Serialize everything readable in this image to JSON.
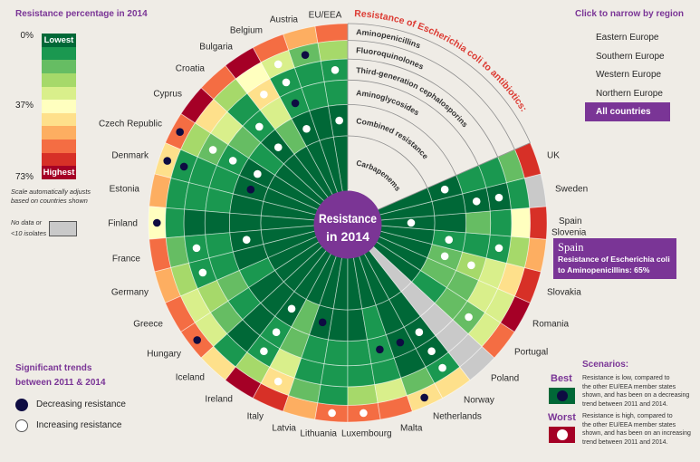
{
  "page": {
    "background": "#efece6",
    "accent": "#7a3596"
  },
  "legend": {
    "title": "Resistance percentage in 2014",
    "tick_min": "0%",
    "tick_mid": "37%",
    "tick_max": "73%",
    "lowest": "Lowest",
    "highest": "Highest",
    "colors": [
      "#006837",
      "#1a9850",
      "#66bd63",
      "#a6d96a",
      "#d9ef8b",
      "#ffffbf",
      "#fee08b",
      "#fdae61",
      "#f46d43",
      "#d73027",
      "#a50026"
    ],
    "note": [
      "Scale automatically adjusts",
      "based on countries shown"
    ],
    "no_data": [
      "No data or",
      "<10 isolates"
    ],
    "no_data_color": "#c9c9c9"
  },
  "trends_legend": {
    "title": [
      "Significant trends",
      "between 2011 & 2014"
    ],
    "decreasing": "Decreasing resistance",
    "increasing": "Increasing resistance",
    "decreasing_color": "#0e0c42",
    "increasing_color": "#ffffff"
  },
  "regions": {
    "title": "Click to narrow by region",
    "items": [
      "Eastern Europe",
      "Southern Europe",
      "Western Europe",
      "Northern Europe",
      "All countries"
    ],
    "selected_index": 4
  },
  "scenarios": {
    "title": "Scenarios:",
    "best": {
      "label": "Best",
      "lines": [
        "Resistance is low, compared to",
        "the other EU/EEA member states",
        "shown, and has been on a decreasing",
        "trend between 2011 and 2014."
      ],
      "box_color": "#006837",
      "dot_color": "#0e0c42"
    },
    "worst": {
      "label": "Worst",
      "lines": [
        "Resistance is high, compared to",
        "the other EU/EEA member states",
        "shown, and has been on an increasing",
        "trend between 2011 and 2014."
      ],
      "box_color": "#a50026",
      "dot_color": "#ffffff"
    }
  },
  "tooltip": {
    "country": "Spain",
    "line1": "Resistance of Escherichia coli",
    "line2": "to Aminopenicillins: 65%"
  },
  "chart_data": {
    "type": "heatmap",
    "layout": "radial",
    "title": "Resistance of Escherichia coli to antibiotics:",
    "center_label": [
      "Resistance",
      "in 2014"
    ],
    "rings": [
      "Aminopenicillins",
      "Fluoroquinolones",
      "Third-generation cephalosporins",
      "Aminoglycosides",
      "Combined resistance",
      "Carbapenems"
    ],
    "scale": {
      "min_pct": 0,
      "mid_pct": 37,
      "max_pct": 73,
      "bins": 11,
      "value_meaning": "color bin 0 = lowest, 10 = highest; null = no data or <10 isolates"
    },
    "trend_codes": {
      "dec": "Decreasing resistance",
      "inc": "Increasing resistance"
    },
    "countries": [
      {
        "name": "EU/EEA",
        "levels": [
          8,
          3,
          1,
          1,
          0,
          0
        ],
        "trends": [
          null,
          null,
          "inc",
          null,
          "inc",
          null
        ]
      },
      {
        "name": "Austria",
        "levels": [
          7,
          2,
          1,
          1,
          0,
          0
        ],
        "trends": [
          null,
          "dec",
          null,
          null,
          null,
          null
        ]
      },
      {
        "name": "Belgium",
        "levels": [
          8,
          4,
          1,
          1,
          0,
          0
        ],
        "trends": [
          null,
          "inc",
          "inc",
          "dec",
          "inc",
          null
        ]
      },
      {
        "name": "Bulgaria",
        "levels": [
          10,
          5,
          6,
          4,
          2,
          0
        ],
        "trends": [
          null,
          null,
          "inc",
          null,
          null,
          null
        ]
      },
      {
        "name": "Croatia",
        "levels": [
          8,
          3,
          1,
          1,
          0,
          0
        ],
        "trends": [
          null,
          null,
          null,
          "inc",
          "inc",
          null
        ]
      },
      {
        "name": "Cyprus",
        "levels": [
          10,
          6,
          4,
          2,
          1,
          0
        ],
        "trends": [
          null,
          null,
          null,
          null,
          null,
          null
        ]
      },
      {
        "name": "Czech Republic",
        "levels": [
          8,
          3,
          2,
          1,
          0,
          0
        ],
        "trends": [
          "dec",
          null,
          "inc",
          "inc",
          "inc",
          null
        ]
      },
      {
        "name": "Denmark",
        "levels": [
          6,
          1,
          1,
          1,
          0,
          0
        ],
        "trends": [
          "dec",
          "dec",
          null,
          null,
          "dec",
          null
        ]
      },
      {
        "name": "Estonia",
        "levels": [
          7,
          1,
          1,
          1,
          0,
          0
        ],
        "trends": [
          null,
          null,
          null,
          null,
          null,
          null
        ]
      },
      {
        "name": "Finland",
        "levels": [
          5,
          1,
          0,
          0,
          0,
          0
        ],
        "trends": [
          "dec",
          null,
          null,
          null,
          null,
          null
        ]
      },
      {
        "name": "France",
        "levels": [
          8,
          2,
          1,
          1,
          0,
          0
        ],
        "trends": [
          null,
          null,
          "inc",
          null,
          "inc",
          null
        ]
      },
      {
        "name": "Germany",
        "levels": [
          7,
          3,
          1,
          1,
          0,
          0
        ],
        "trends": [
          null,
          null,
          "inc",
          null,
          null,
          null
        ]
      },
      {
        "name": "Greece",
        "levels": [
          8,
          4,
          3,
          2,
          1,
          0
        ],
        "trends": [
          null,
          null,
          null,
          null,
          null,
          null
        ]
      },
      {
        "name": "Hungary",
        "levels": [
          8,
          4,
          2,
          1,
          0,
          0
        ],
        "trends": [
          "dec",
          null,
          null,
          null,
          null,
          null
        ]
      },
      {
        "name": "Iceland",
        "levels": [
          6,
          1,
          0,
          0,
          0,
          0
        ],
        "trends": [
          null,
          null,
          null,
          null,
          null,
          null
        ]
      },
      {
        "name": "Ireland",
        "levels": [
          10,
          3,
          1,
          1,
          0,
          0
        ],
        "trends": [
          null,
          null,
          "inc",
          "inc",
          "inc",
          null
        ]
      },
      {
        "name": "Italy",
        "levels": [
          9,
          6,
          4,
          2,
          2,
          0
        ],
        "trends": [
          null,
          "inc",
          null,
          null,
          null,
          null
        ]
      },
      {
        "name": "Latvia",
        "levels": [
          7,
          2,
          1,
          1,
          0,
          0
        ],
        "trends": [
          null,
          null,
          null,
          null,
          "dec",
          null
        ]
      },
      {
        "name": "Lithuania",
        "levels": [
          8,
          1,
          1,
          1,
          0,
          0
        ],
        "trends": [
          "inc",
          null,
          null,
          null,
          null,
          null
        ]
      },
      {
        "name": "Luxembourg",
        "levels": [
          8,
          3,
          1,
          1,
          0,
          0
        ],
        "trends": [
          "inc",
          null,
          null,
          null,
          null,
          null
        ]
      },
      {
        "name": "Malta",
        "levels": [
          8,
          4,
          1,
          1,
          1,
          0
        ],
        "trends": [
          null,
          null,
          null,
          "dec",
          null,
          null
        ]
      },
      {
        "name": "Netherlands",
        "levels": [
          6,
          2,
          0,
          0,
          0,
          0
        ],
        "trends": [
          "dec",
          null,
          null,
          "dec",
          null,
          null
        ]
      },
      {
        "name": "Norway",
        "levels": [
          6,
          1,
          0,
          0,
          0,
          0
        ],
        "trends": [
          null,
          "inc",
          "inc",
          "inc",
          null,
          null
        ]
      },
      {
        "name": "Poland",
        "levels": [
          null,
          null,
          null,
          null,
          null,
          null
        ],
        "trends": [
          null,
          null,
          null,
          null,
          null,
          null
        ]
      },
      {
        "name": "Portugal",
        "levels": [
          8,
          4,
          2,
          2,
          1,
          0
        ],
        "trends": [
          null,
          null,
          "inc",
          null,
          null,
          null
        ]
      },
      {
        "name": "Romania",
        "levels": [
          10,
          4,
          4,
          2,
          2,
          0
        ],
        "trends": [
          null,
          null,
          null,
          null,
          null,
          null
        ]
      },
      {
        "name": "Slovakia",
        "levels": [
          9,
          6,
          4,
          3,
          2,
          0
        ],
        "trends": [
          null,
          null,
          null,
          "inc",
          "inc",
          null
        ]
      },
      {
        "name": "Slovenia",
        "levels": [
          7,
          3,
          1,
          1,
          1,
          0
        ],
        "trends": [
          null,
          null,
          "inc",
          null,
          "inc",
          null
        ]
      },
      {
        "name": "Spain",
        "levels": [
          9,
          5,
          1,
          2,
          0,
          0
        ],
        "trends": [
          null,
          null,
          null,
          null,
          null,
          "inc"
        ]
      },
      {
        "name": "Sweden",
        "levels": [
          null,
          1,
          0,
          0,
          0,
          0
        ],
        "trends": [
          null,
          null,
          "inc",
          "inc",
          null,
          null
        ]
      },
      {
        "name": "UK",
        "levels": [
          9,
          2,
          1,
          1,
          0,
          0
        ],
        "trends": [
          null,
          null,
          null,
          null,
          "inc",
          null
        ]
      }
    ]
  }
}
